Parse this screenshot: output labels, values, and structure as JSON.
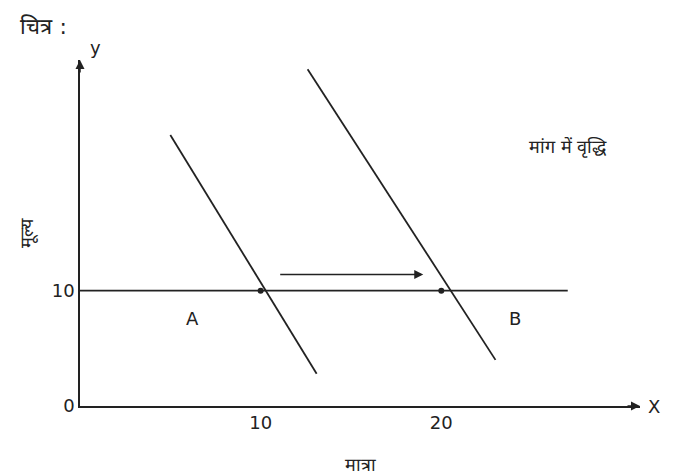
{
  "chart_data": {
    "type": "line",
    "title": "चित्र :",
    "x_label": "मात्रा",
    "y_label": "मूल्य",
    "xlim": [
      0,
      31
    ],
    "ylim": [
      0,
      30
    ],
    "xticks": [
      10,
      20
    ],
    "yticks": [
      0,
      10
    ],
    "grid": false,
    "color": "#222222",
    "series": [
      {
        "type": "line",
        "color": "#222222",
        "line_style": "solid",
        "x": [
          5,
          13.1
        ],
        "values": [
          23.5,
          2.8
        ]
      },
      {
        "type": "line",
        "color": "#222222",
        "line_style": "solid",
        "x": [
          12.6,
          23
        ],
        "values": [
          29.2,
          4
        ]
      },
      {
        "type": "line",
        "color": "#222222",
        "line_style": "solid",
        "x": [
          0,
          27
        ],
        "values": [
          10,
          10
        ]
      },
      {
        "type": "scatter",
        "color": "#222222",
        "marker": "circle",
        "x": [
          10,
          20
        ],
        "values": [
          10,
          10
        ]
      }
    ],
    "annotations": [
      {
        "text": "A",
        "x": 6.2,
        "y": 7.6
      },
      {
        "text": "B",
        "x": 24.1,
        "y": 7.6
      },
      {
        "text": "मांग में वृद्धि",
        "x": 27,
        "y": 22.5
      },
      {
        "text": "X",
        "x": 31,
        "y": 0
      },
      {
        "text": "y",
        "x": 0,
        "y": 30
      }
    ],
    "arrows": [
      {
        "from": [
          11,
          11.4
        ],
        "to": [
          19,
          11.4
        ]
      }
    ]
  }
}
